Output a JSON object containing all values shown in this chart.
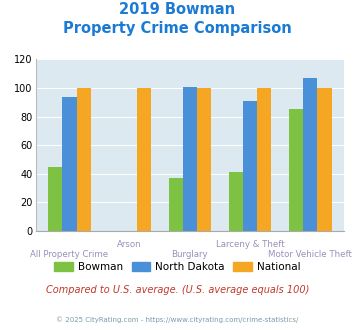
{
  "title_line1": "2019 Bowman",
  "title_line2": "Property Crime Comparison",
  "categories": [
    "All Property Crime",
    "Arson",
    "Burglary",
    "Larceny & Theft",
    "Motor Vehicle Theft"
  ],
  "series": {
    "Bowman": [
      45,
      0,
      37,
      41,
      85
    ],
    "North Dakota": [
      94,
      0,
      101,
      91,
      107
    ],
    "National": [
      100,
      100,
      100,
      100,
      100
    ]
  },
  "colors": {
    "Bowman": "#7dc242",
    "North Dakota": "#4a90d9",
    "National": "#f5a623"
  },
  "ylim": [
    0,
    120
  ],
  "yticks": [
    0,
    20,
    40,
    60,
    80,
    100,
    120
  ],
  "bg_color": "#dce9f0",
  "title_color": "#1a7ad4",
  "xlabel_color": "#9b8fba",
  "footnote_color": "#c0392b",
  "copyright_color": "#7f9aaa",
  "footnote": "Compared to U.S. average. (U.S. average equals 100)",
  "copyright": "© 2025 CityRating.com - https://www.cityrating.com/crime-statistics/",
  "upper_row_cats": [
    1,
    3
  ],
  "lower_row_cats": [
    0,
    2,
    4
  ]
}
